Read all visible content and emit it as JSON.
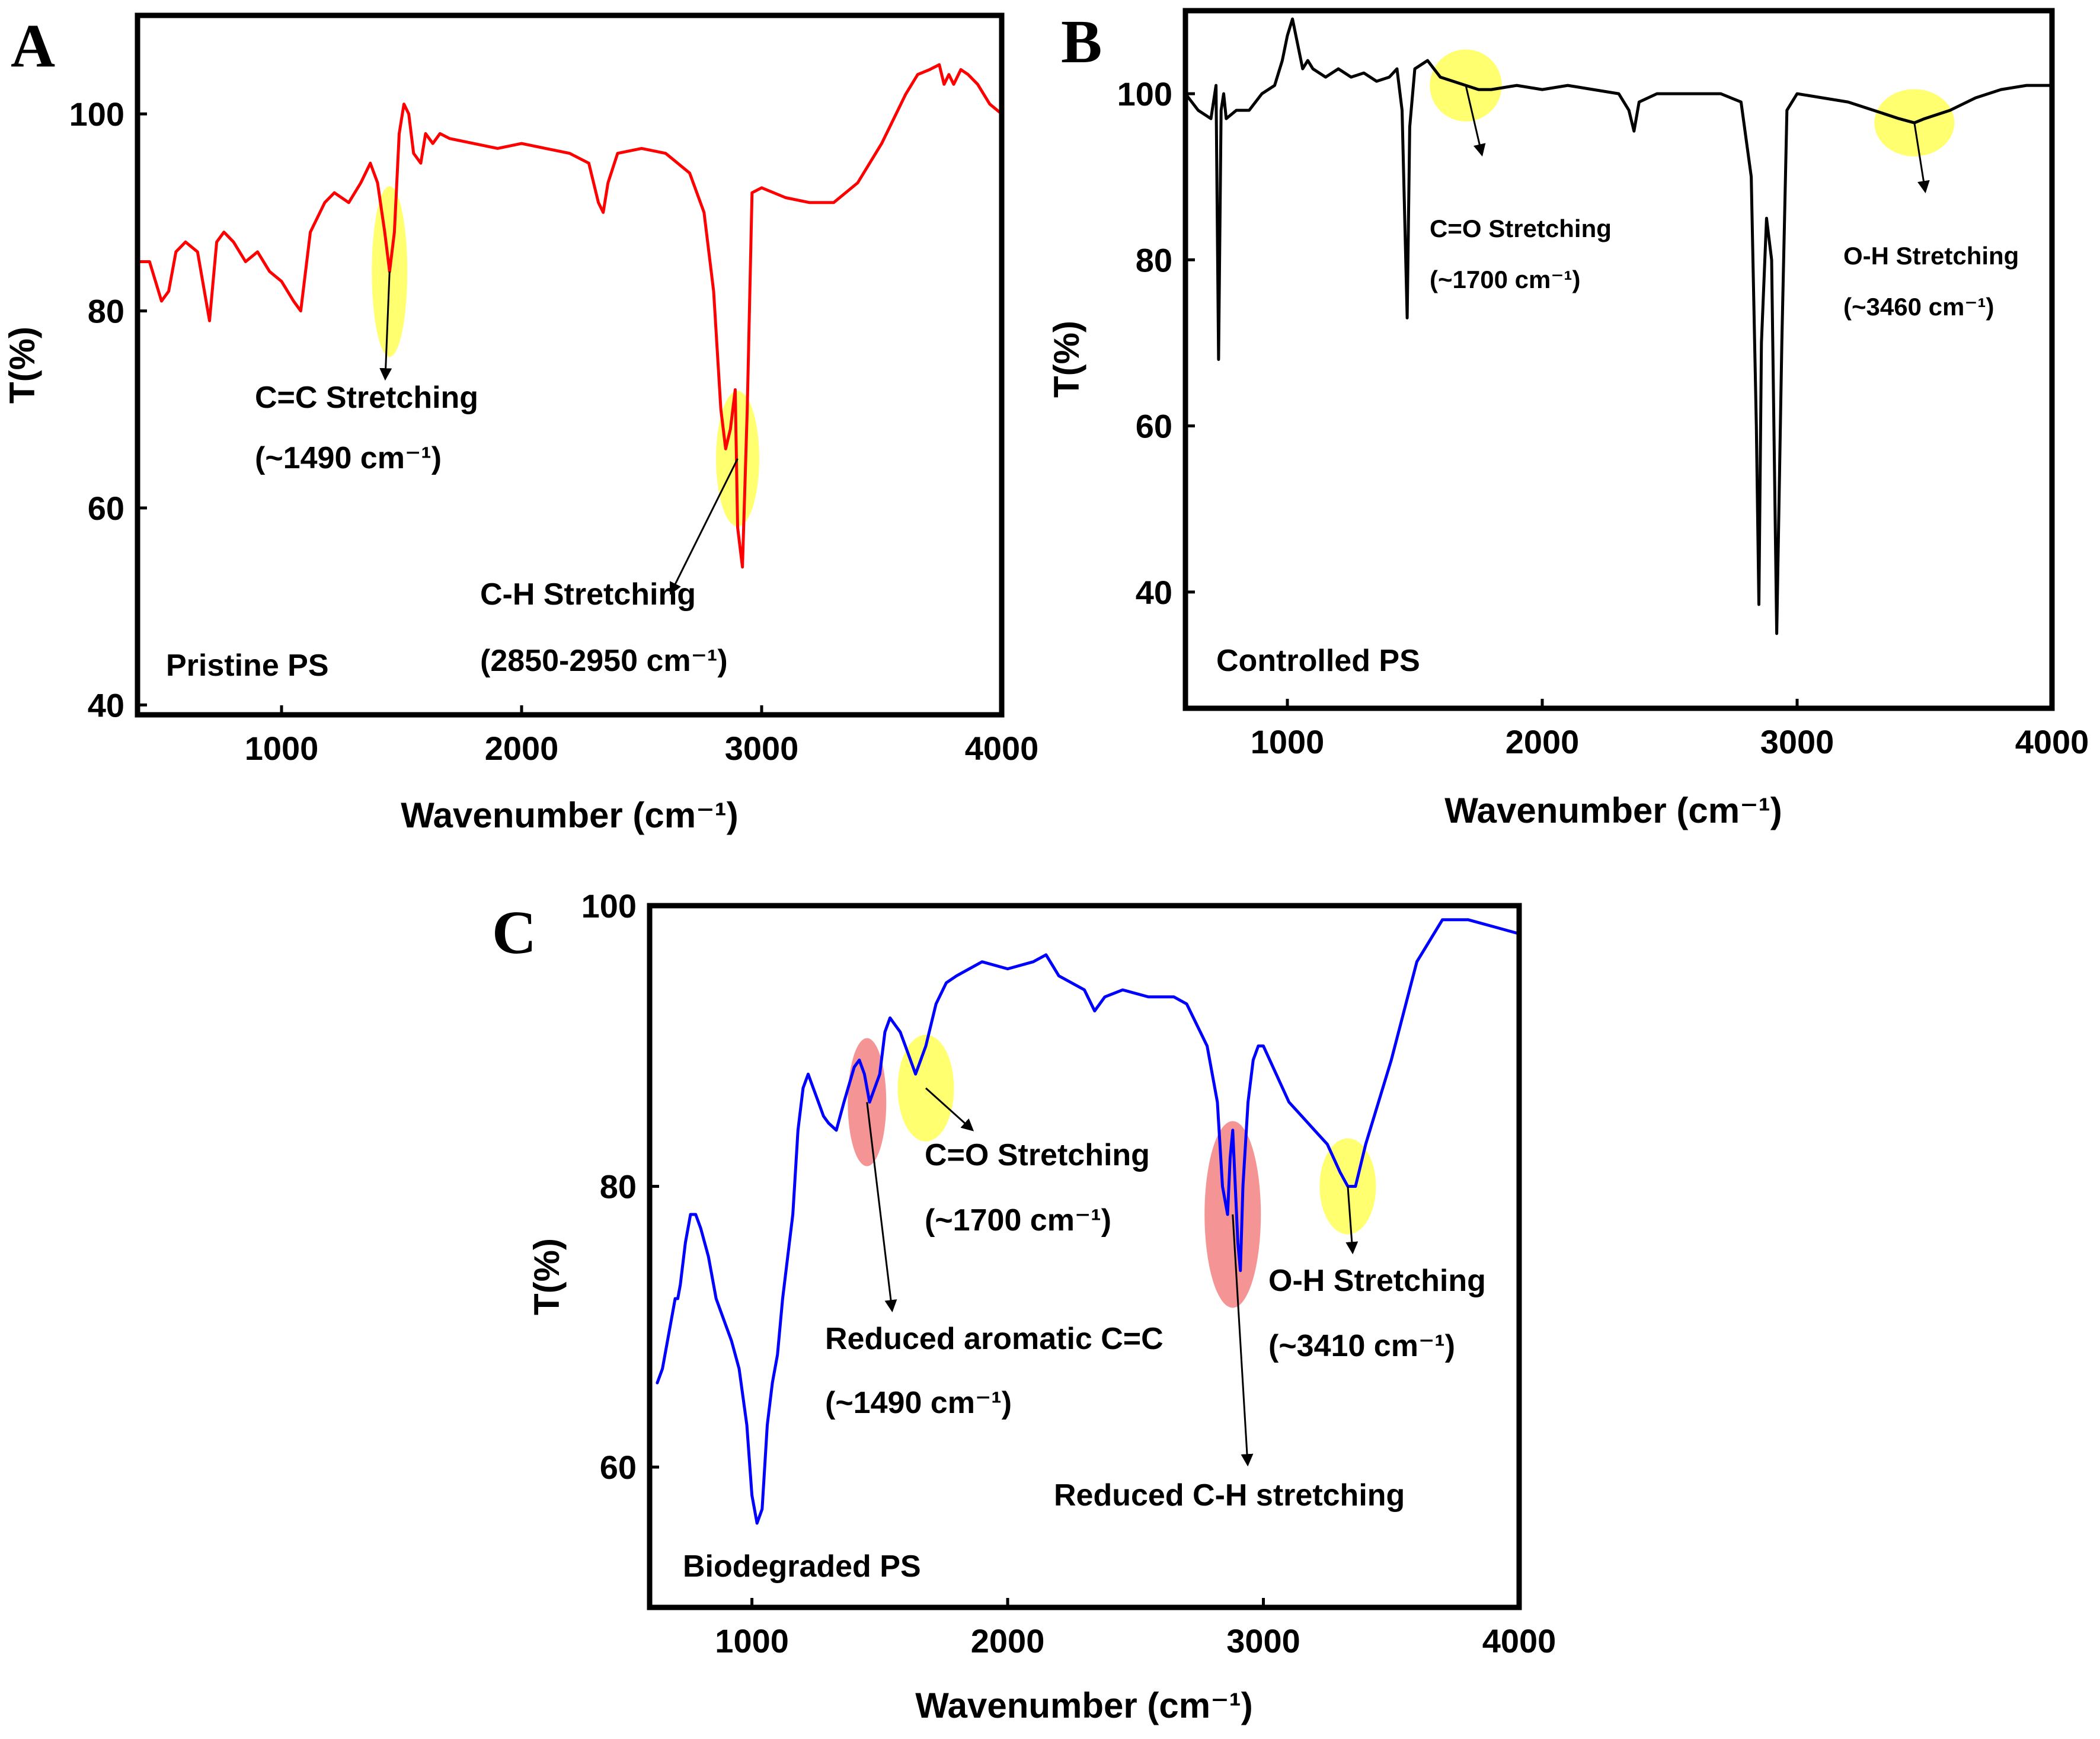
{
  "chart_data": [
    {
      "type": "line",
      "panel": "A",
      "sample_label": "Pristine PS",
      "xlabel": "Wavenumber (cm⁻¹)",
      "ylabel": "T(%)",
      "xlim": [
        400,
        4000
      ],
      "ylim": [
        39,
        110
      ],
      "xticks": [
        1000,
        2000,
        3000,
        4000
      ],
      "yticks": [
        40,
        60,
        80,
        100
      ],
      "line_color": "#ff0000",
      "series": [
        {
          "name": "Pristine PS",
          "x": [
            400,
            450,
            500,
            530,
            560,
            600,
            650,
            700,
            730,
            760,
            800,
            850,
            900,
            950,
            1000,
            1050,
            1080,
            1120,
            1180,
            1220,
            1280,
            1330,
            1370,
            1400,
            1430,
            1450,
            1470,
            1490,
            1510,
            1530,
            1550,
            1580,
            1600,
            1630,
            1660,
            1700,
            1800,
            1900,
            2000,
            2100,
            2200,
            2280,
            2320,
            2340,
            2360,
            2400,
            2500,
            2600,
            2700,
            2760,
            2800,
            2830,
            2850,
            2870,
            2890,
            2900,
            2920,
            2940,
            2960,
            3000,
            3100,
            3200,
            3300,
            3400,
            3500,
            3600,
            3650,
            3700,
            3740,
            3760,
            3780,
            3800,
            3830,
            3860,
            3900,
            3950,
            4000
          ],
          "y": [
            85,
            85,
            81,
            82,
            86,
            87,
            86,
            79,
            87,
            88,
            87,
            85,
            86,
            84,
            83,
            81,
            80,
            88,
            91,
            92,
            91,
            93,
            95,
            93,
            88,
            84,
            88,
            98,
            101,
            100,
            96,
            95,
            98,
            97,
            98,
            97.5,
            97,
            96.5,
            97,
            96.5,
            96,
            95,
            91,
            90,
            93,
            96,
            96.5,
            96,
            94,
            90,
            82,
            70,
            66,
            68,
            72,
            58,
            54,
            70,
            92,
            92.5,
            91.5,
            91,
            91,
            93,
            97,
            102,
            104,
            104.5,
            105,
            103,
            104,
            103,
            104.5,
            104,
            103,
            101,
            100
          ]
        }
      ],
      "annotations": [
        {
          "title": "C=C Stretching",
          "detail": "(~1490 cm⁻¹)",
          "x": 1450,
          "y": 84,
          "highlight": "yellow"
        },
        {
          "title": "C-H Stretching",
          "detail": "(2850-2950 cm⁻¹)",
          "x": 2900,
          "y": 65,
          "highlight": "yellow"
        }
      ]
    },
    {
      "type": "line",
      "panel": "B",
      "sample_label": "Controlled PS",
      "xlabel": "Wavenumber (cm⁻¹)",
      "ylabel": "T(%)",
      "xlim": [
        600,
        4000
      ],
      "ylim": [
        26,
        110
      ],
      "xticks": [
        1000,
        2000,
        3000,
        4000
      ],
      "yticks": [
        40,
        60,
        80,
        100
      ],
      "line_color": "#000000",
      "series": [
        {
          "name": "Controlled PS",
          "x": [
            600,
            650,
            700,
            720,
            730,
            740,
            750,
            760,
            800,
            850,
            900,
            950,
            980,
            1000,
            1020,
            1040,
            1060,
            1080,
            1100,
            1150,
            1200,
            1250,
            1300,
            1350,
            1400,
            1430,
            1450,
            1470,
            1480,
            1500,
            1550,
            1600,
            1650,
            1700,
            1750,
            1800,
            1900,
            2000,
            2100,
            2200,
            2300,
            2340,
            2360,
            2380,
            2450,
            2600,
            2700,
            2780,
            2820,
            2840,
            2850,
            2860,
            2880,
            2900,
            2920,
            2940,
            2960,
            3000,
            3100,
            3200,
            3300,
            3400,
            3460,
            3500,
            3600,
            3700,
            3800,
            3900,
            4000
          ],
          "y": [
            100,
            98,
            97,
            101,
            68,
            98,
            100,
            97,
            98,
            98,
            100,
            101,
            104,
            107,
            109,
            106,
            103,
            104,
            103,
            102,
            103,
            102,
            102.5,
            101.5,
            102,
            103,
            98,
            73,
            96,
            103,
            104,
            102,
            101.5,
            101,
            100.5,
            100.5,
            101,
            100.5,
            101,
            100.5,
            100,
            98,
            95.5,
            99,
            100,
            100,
            100,
            99,
            90,
            60,
            38.5,
            70,
            85,
            80,
            35,
            70,
            98,
            100,
            99.5,
            99,
            98,
            97,
            96.5,
            97,
            98,
            99.5,
            100.5,
            101,
            101
          ]
        }
      ],
      "annotations": [
        {
          "title": "C=O Stretching",
          "detail": "(~1700 cm⁻¹)",
          "x": 1700,
          "y": 101,
          "highlight": "yellow"
        },
        {
          "title": "O-H Stretching",
          "detail": "(~3460 cm⁻¹)",
          "x": 3460,
          "y": 96.5,
          "highlight": "yellow"
        }
      ]
    },
    {
      "type": "line",
      "panel": "C",
      "sample_label": "Biodegraded PS",
      "xlabel": "Wavenumber (cm⁻¹)",
      "ylabel": "T(%)",
      "xlim": [
        600,
        4000
      ],
      "ylim": [
        50,
        100
      ],
      "xticks": [
        1000,
        2000,
        3000,
        4000
      ],
      "yticks": [
        60,
        80,
        100
      ],
      "line_color": "#0000ff",
      "series": [
        {
          "name": "Biodegraded PS",
          "x": [
            630,
            650,
            680,
            700,
            710,
            720,
            740,
            760,
            780,
            800,
            830,
            860,
            900,
            920,
            950,
            980,
            1000,
            1020,
            1040,
            1060,
            1080,
            1100,
            1120,
            1140,
            1160,
            1180,
            1200,
            1220,
            1240,
            1260,
            1280,
            1300,
            1330,
            1360,
            1400,
            1420,
            1440,
            1460,
            1480,
            1500,
            1520,
            1540,
            1560,
            1580,
            1600,
            1640,
            1680,
            1720,
            1760,
            1800,
            1900,
            2000,
            2100,
            2150,
            2200,
            2300,
            2340,
            2360,
            2380,
            2450,
            2550,
            2650,
            2700,
            2780,
            2820,
            2840,
            2860,
            2870,
            2880,
            2900,
            2910,
            2920,
            2940,
            2960,
            2980,
            3000,
            3050,
            3100,
            3150,
            3200,
            3250,
            3300,
            3330,
            3360,
            3400,
            3500,
            3600,
            3700,
            3750,
            3800,
            3900,
            4000
          ],
          "y": [
            66,
            67,
            70,
            72,
            72,
            73,
            76,
            78,
            78,
            77,
            75,
            72,
            70,
            69,
            67,
            63,
            58,
            56,
            57,
            63,
            66,
            68,
            72,
            75,
            78,
            84,
            87,
            88,
            87,
            86,
            85,
            84.5,
            84,
            86,
            88.5,
            89,
            88,
            86,
            87,
            88,
            91,
            92,
            91.5,
            91,
            90,
            88,
            90,
            93,
            94.5,
            95,
            96,
            95.5,
            96,
            96.5,
            95,
            94,
            92.5,
            93,
            93.5,
            94,
            93.5,
            93.5,
            93,
            90,
            86,
            80,
            78,
            82,
            84,
            76,
            74,
            80,
            86,
            89,
            90,
            90,
            88,
            86,
            85,
            84,
            83,
            81,
            80,
            80,
            83,
            89,
            96,
            99,
            99,
            99,
            98.5,
            98
          ]
        }
      ],
      "annotations": [
        {
          "title": "C=O Stretching",
          "detail": "(~1700 cm⁻¹)",
          "x": 1680,
          "y": 87,
          "highlight": "yellow"
        },
        {
          "title": "Reduced aromatic C=C",
          "detail": "(~1490 cm⁻¹)",
          "x": 1450,
          "y": 86,
          "highlight": "red"
        },
        {
          "title": "O-H Stretching",
          "detail": "(~3410 cm⁻¹)",
          "x": 3330,
          "y": 80,
          "highlight": "yellow"
        },
        {
          "title": "Reduced C-H stretching",
          "detail": "",
          "x": 2880,
          "y": 78,
          "highlight": "red"
        }
      ]
    }
  ],
  "colors": {
    "highlight_yellow": "#ffff33",
    "highlight_red": "#f07070",
    "frame": "#000000"
  }
}
